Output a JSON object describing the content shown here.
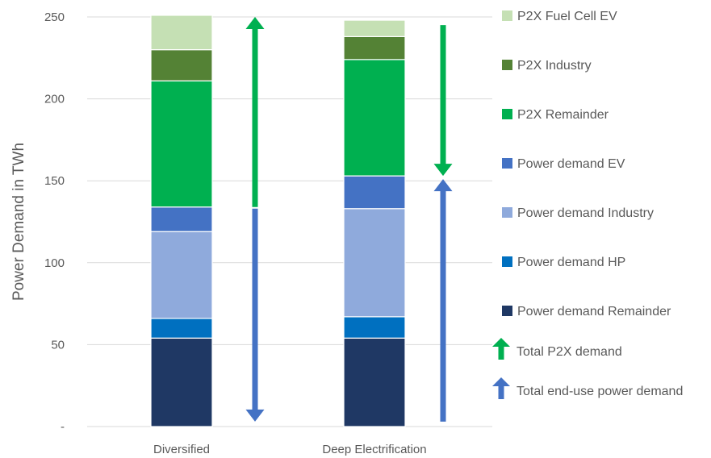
{
  "chart_data": {
    "type": "bar",
    "stacked": true,
    "ylabel": "Power Demand in TWh",
    "ylim": [
      0,
      250
    ],
    "yticks": [
      {
        "value": 0,
        "label": "-"
      },
      {
        "value": 50,
        "label": "50"
      },
      {
        "value": 100,
        "label": "100"
      },
      {
        "value": 150,
        "label": "150"
      },
      {
        "value": 200,
        "label": "200"
      },
      {
        "value": 250,
        "label": "250"
      }
    ],
    "grid": true,
    "legend_position": "right",
    "categories": [
      "Diversified",
      "Deep Electrification"
    ],
    "series": [
      {
        "name": "Power demand Remainder",
        "color": "#1f3864",
        "values": [
          54,
          54
        ]
      },
      {
        "name": "Power demand HP",
        "color": "#0070c0",
        "values": [
          12,
          13
        ]
      },
      {
        "name": "Power demand Industry",
        "color": "#8faadc",
        "values": [
          53,
          66
        ]
      },
      {
        "name": "Power demand EV",
        "color": "#4472c4",
        "values": [
          15,
          20
        ]
      },
      {
        "name": "P2X Remainder",
        "color": "#00b050",
        "values": [
          77,
          71
        ]
      },
      {
        "name": "P2X Industry",
        "color": "#548235",
        "values": [
          19,
          14
        ]
      },
      {
        "name": "P2X Fuel Cell EV",
        "color": "#c5e0b4",
        "values": [
          21,
          10
        ]
      }
    ],
    "arrows": [
      {
        "name": "Total P2X demand",
        "color": "#00b050",
        "items": [
          {
            "category": "Diversified",
            "from": 134,
            "to": 250
          },
          {
            "category": "Deep Electrification",
            "from": 245,
            "to": 153
          }
        ]
      },
      {
        "name": "Total end-use power demand",
        "color": "#4472c4",
        "items": [
          {
            "category": "Diversified",
            "from": 133,
            "to": 3
          },
          {
            "category": "Deep Electrification",
            "from": 3,
            "to": 151
          }
        ]
      }
    ],
    "legend_order": [
      "P2X Fuel Cell EV",
      "P2X Industry",
      "P2X Remainder",
      "Power demand EV",
      "Power demand Industry",
      "Power demand HP",
      "Power demand Remainder"
    ]
  }
}
